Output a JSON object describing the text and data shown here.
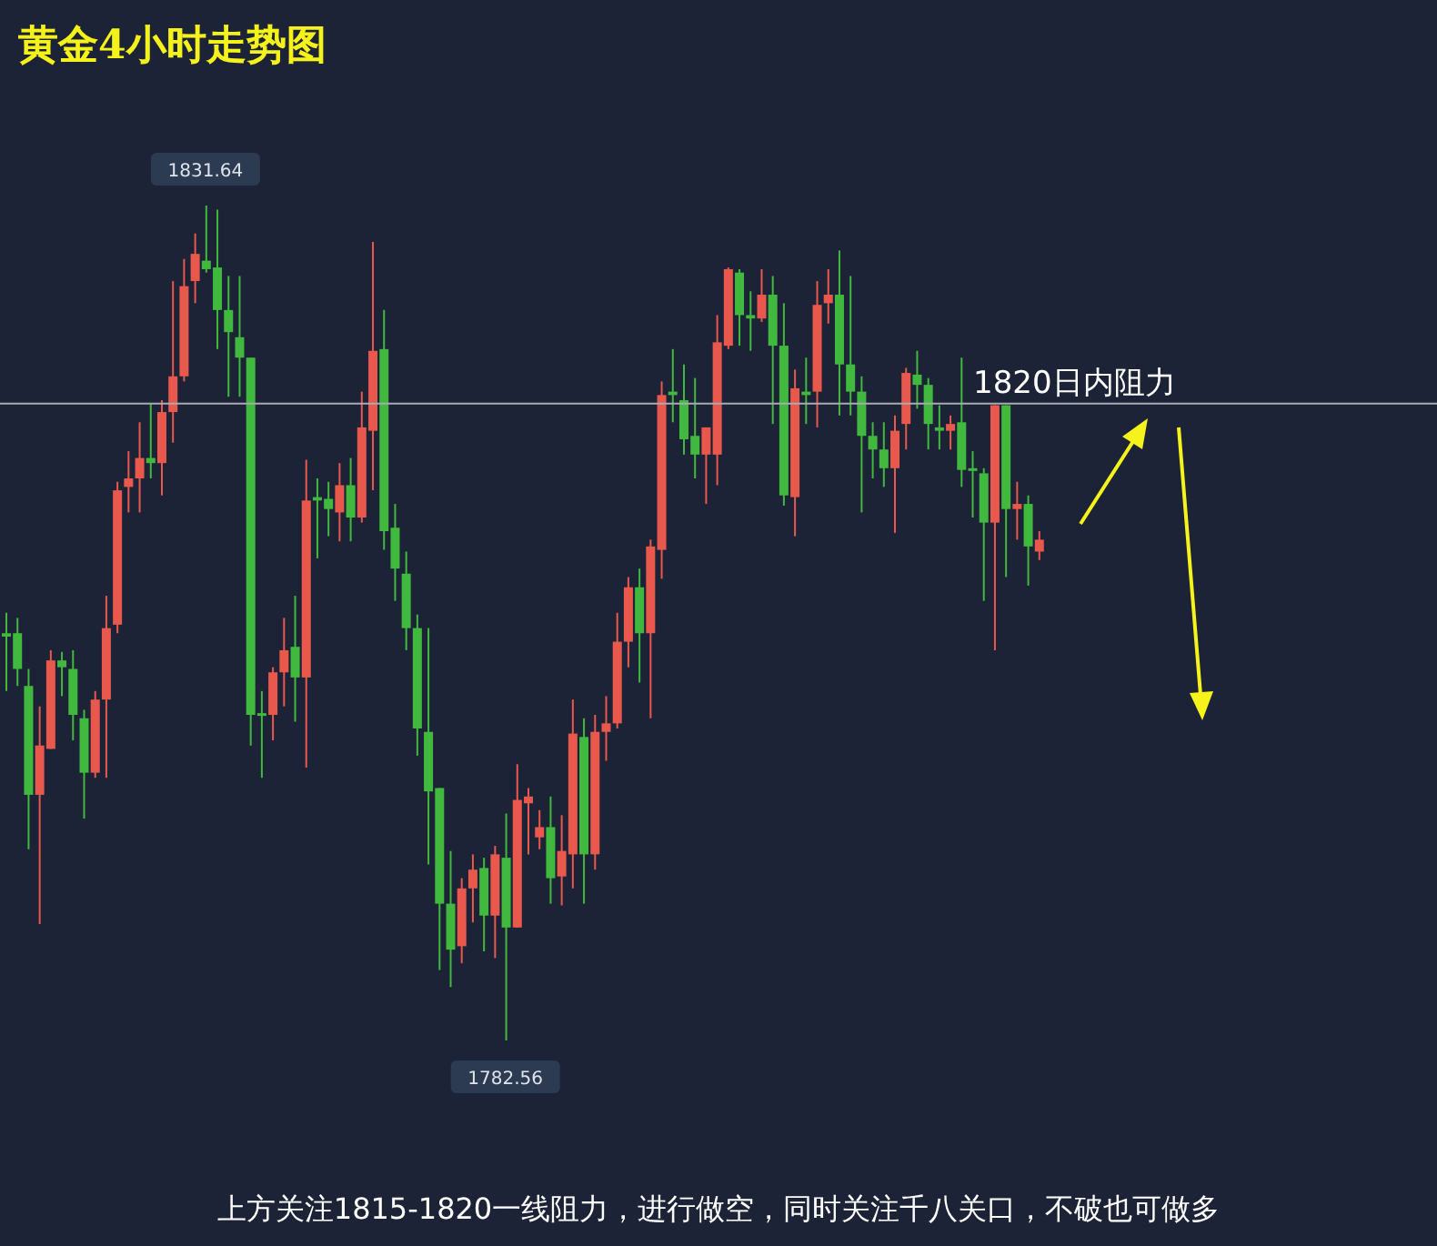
{
  "chart_data": {
    "type": "candlestick",
    "title": "黄金4小时走势图",
    "categories": [
      null,
      null,
      null,
      null,
      null,
      null,
      null,
      null,
      null,
      null,
      null,
      null,
      null,
      null,
      null,
      null,
      null,
      null,
      null,
      null,
      null,
      null,
      null,
      null,
      null,
      null,
      null,
      null,
      null,
      null,
      null,
      null,
      null,
      null,
      null,
      null,
      null,
      null,
      null,
      null,
      null,
      null,
      null,
      null,
      null,
      null,
      null,
      null,
      null,
      null,
      null,
      null,
      null,
      null,
      null,
      null,
      null,
      null,
      null,
      null,
      null,
      null,
      null,
      null,
      null,
      null,
      null,
      null,
      null,
      null,
      null,
      null,
      null,
      null,
      null,
      null,
      null,
      null,
      null,
      null,
      null,
      null,
      null,
      null,
      null,
      null,
      null,
      null,
      null,
      null,
      null,
      null,
      null,
      null
    ],
    "ohlc": [
      [
        1806.5,
        1807.7,
        1803.1,
        1806.3
      ],
      [
        1806.5,
        1807.4,
        1803.4,
        1804.4
      ],
      [
        1803.4,
        1804.4,
        1793.8,
        1797.0
      ],
      [
        1797.0,
        1802.2,
        1789.4,
        1799.9
      ],
      [
        1799.7,
        1805.5,
        1799.7,
        1804.9
      ],
      [
        1804.9,
        1805.4,
        1802.8,
        1804.5
      ],
      [
        1804.4,
        1805.5,
        1800.2,
        1801.7
      ],
      [
        1801.5,
        1802.0,
        1795.6,
        1798.3
      ],
      [
        1798.3,
        1803.1,
        1798.0,
        1802.6
      ],
      [
        1802.6,
        1808.7,
        1798.0,
        1806.8
      ],
      [
        1807.0,
        1815.4,
        1806.5,
        1814.9
      ],
      [
        1815.1,
        1817.2,
        1813.6,
        1815.6
      ],
      [
        1815.6,
        1818.9,
        1813.6,
        1816.8
      ],
      [
        1816.8,
        1820.0,
        1815.6,
        1816.5
      ],
      [
        1816.5,
        1820.2,
        1814.6,
        1819.5
      ],
      [
        1819.5,
        1827.2,
        1817.7,
        1821.6
      ],
      [
        1821.6,
        1828.5,
        1821.3,
        1826.9
      ],
      [
        1827.2,
        1830.0,
        1825.9,
        1828.8
      ],
      [
        1828.4,
        1831.64,
        1827.7,
        1827.9
      ],
      [
        1828.0,
        1831.4,
        1823.2,
        1825.5
      ],
      [
        1825.5,
        1827.5,
        1820.4,
        1824.2
      ],
      [
        1823.9,
        1827.5,
        1820.4,
        1822.7
      ],
      [
        1822.7,
        1822.7,
        1799.9,
        1801.7
      ],
      [
        1801.8,
        1803.1,
        1798.0,
        1801.7
      ],
      [
        1801.7,
        1804.5,
        1800.2,
        1804.2
      ],
      [
        1804.2,
        1807.4,
        1802.2,
        1805.5
      ],
      [
        1805.7,
        1808.7,
        1801.3,
        1803.9
      ],
      [
        1803.9,
        1816.7,
        1798.6,
        1814.3
      ],
      [
        1814.5,
        1815.6,
        1810.9,
        1814.3
      ],
      [
        1814.4,
        1815.4,
        1812.2,
        1813.8
      ],
      [
        1813.6,
        1816.5,
        1811.9,
        1815.2
      ],
      [
        1815.2,
        1816.8,
        1811.9,
        1813.3
      ],
      [
        1813.3,
        1820.7,
        1813.0,
        1818.6
      ],
      [
        1818.4,
        1829.5,
        1814.9,
        1823.1
      ],
      [
        1823.2,
        1825.5,
        1811.4,
        1812.5
      ],
      [
        1812.7,
        1814.1,
        1808.4,
        1810.3
      ],
      [
        1810.0,
        1811.3,
        1805.5,
        1806.8
      ],
      [
        1806.8,
        1807.6,
        1799.3,
        1800.9
      ],
      [
        1800.7,
        1806.8,
        1792.9,
        1797.2
      ],
      [
        1797.4,
        1797.4,
        1786.7,
        1790.6
      ],
      [
        1790.6,
        1793.7,
        1785.7,
        1787.9
      ],
      [
        1788.1,
        1792.1,
        1787.1,
        1791.5
      ],
      [
        1791.5,
        1793.5,
        1789.5,
        1792.6
      ],
      [
        1792.7,
        1793.3,
        1787.8,
        1789.9
      ],
      [
        1789.9,
        1794.0,
        1787.4,
        1793.5
      ],
      [
        1793.3,
        1795.9,
        1782.56,
        1789.2
      ],
      [
        1789.2,
        1798.8,
        1789.2,
        1796.7
      ],
      [
        1796.5,
        1797.4,
        1793.5,
        1796.9
      ],
      [
        1794.5,
        1796.1,
        1793.8,
        1795.1
      ],
      [
        1795.1,
        1796.9,
        1790.6,
        1792.1
      ],
      [
        1792.2,
        1795.8,
        1790.5,
        1793.7
      ],
      [
        1793.5,
        1802.6,
        1791.5,
        1800.6
      ],
      [
        1800.4,
        1801.5,
        1790.6,
        1793.5
      ],
      [
        1793.5,
        1801.7,
        1792.6,
        1800.7
      ],
      [
        1800.7,
        1802.8,
        1799.0,
        1801.2
      ],
      [
        1801.2,
        1807.7,
        1800.9,
        1806.0
      ],
      [
        1806.0,
        1809.8,
        1804.5,
        1809.2
      ],
      [
        1809.2,
        1810.3,
        1803.6,
        1806.5
      ],
      [
        1806.5,
        1812.0,
        1801.5,
        1811.6
      ],
      [
        1811.4,
        1821.3,
        1809.7,
        1820.5
      ],
      [
        1820.7,
        1823.2,
        1818.9,
        1820.5
      ],
      [
        1820.2,
        1822.3,
        1817.0,
        1817.9
      ],
      [
        1818.1,
        1821.5,
        1815.6,
        1817.0
      ],
      [
        1817.0,
        1818.6,
        1814.1,
        1818.6
      ],
      [
        1817.0,
        1825.2,
        1815.2,
        1823.6
      ],
      [
        1823.4,
        1828.0,
        1823.2,
        1827.9
      ],
      [
        1827.7,
        1827.9,
        1823.4,
        1825.2
      ],
      [
        1825.2,
        1826.6,
        1823.1,
        1825.0
      ],
      [
        1825.0,
        1827.9,
        1824.8,
        1826.4
      ],
      [
        1826.4,
        1827.5,
        1818.8,
        1823.4
      ],
      [
        1823.4,
        1825.9,
        1814.0,
        1814.6
      ],
      [
        1814.5,
        1822.0,
        1812.2,
        1820.9
      ],
      [
        1820.7,
        1822.7,
        1818.8,
        1820.5
      ],
      [
        1820.7,
        1827.2,
        1818.6,
        1825.8
      ],
      [
        1825.9,
        1827.9,
        1824.7,
        1826.4
      ],
      [
        1826.4,
        1829.0,
        1819.3,
        1822.3
      ],
      [
        1822.3,
        1827.5,
        1819.3,
        1820.7
      ],
      [
        1820.7,
        1821.6,
        1813.6,
        1818.1
      ],
      [
        1818.1,
        1818.9,
        1815.6,
        1817.3
      ],
      [
        1817.3,
        1818.9,
        1815.1,
        1816.2
      ],
      [
        1816.2,
        1819.3,
        1812.4,
        1818.4
      ],
      [
        1818.8,
        1822.1,
        1817.3,
        1821.8
      ],
      [
        1821.7,
        1823.1,
        1819.7,
        1821.1
      ],
      [
        1821.1,
        1821.5,
        1817.3,
        1818.8
      ],
      [
        1818.6,
        1819.9,
        1817.3,
        1818.4
      ],
      [
        1818.4,
        1819.3,
        1817.3,
        1818.8
      ],
      [
        1818.9,
        1822.7,
        1815.1,
        1816.1
      ],
      [
        1816.2,
        1817.2,
        1813.3,
        1816.1
      ],
      [
        1815.9,
        1816.2,
        1808.4,
        1813.0
      ],
      [
        1813.0,
        1819.9,
        1805.5,
        1819.9
      ],
      [
        1819.9,
        1819.9,
        1809.8,
        1813.8
      ],
      [
        1813.8,
        1815.4,
        1812.0,
        1814.1
      ],
      [
        1814.1,
        1814.6,
        1809.3,
        1811.6
      ],
      [
        1811.3,
        1812.5,
        1810.8,
        1812.0
      ]
    ],
    "ref_lines": [
      {
        "axis": "y",
        "value": 1820,
        "label": "1820日内阻力",
        "color": "#a7abb3"
      }
    ],
    "annotations": [
      {
        "text": "1831.64",
        "y": 1831.64
      },
      {
        "text": "1782.56",
        "y": 1782.56
      },
      "上方关注1815-1820一线阻力，进行做空，同时关注千八关口，不破也可做多"
    ],
    "tick_labels": false
  }
}
